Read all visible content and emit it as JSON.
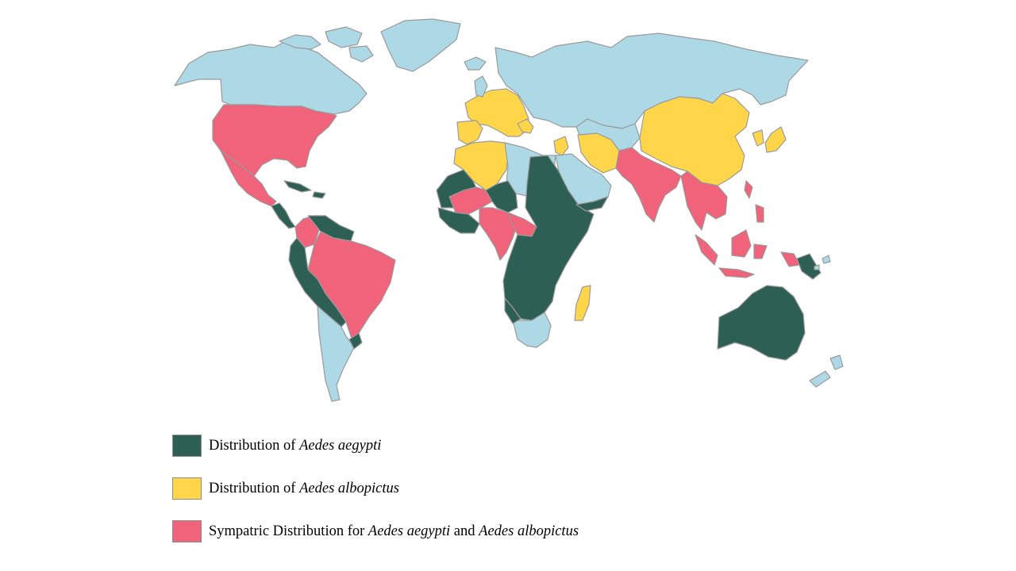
{
  "colors": {
    "none": "#add8e6",
    "aegypti": "#2d5f55",
    "albopictus": "#ffd54a",
    "sympatric": "#f0637a",
    "border": "#9a9a9a"
  },
  "legend": [
    {
      "key": "aegypti",
      "prefix": "Distribution of ",
      "species1": "Aedes aegypti",
      "middle": "",
      "species2": ""
    },
    {
      "key": "albopictus",
      "prefix": "Distribution of ",
      "species1": "Aedes albopictus",
      "middle": "",
      "species2": ""
    },
    {
      "key": "sympatric",
      "prefix": "Sympatric Distribution for ",
      "species1": "Aedes aegypti",
      "middle": " and ",
      "species2": "Aedes albopictus"
    }
  ]
}
